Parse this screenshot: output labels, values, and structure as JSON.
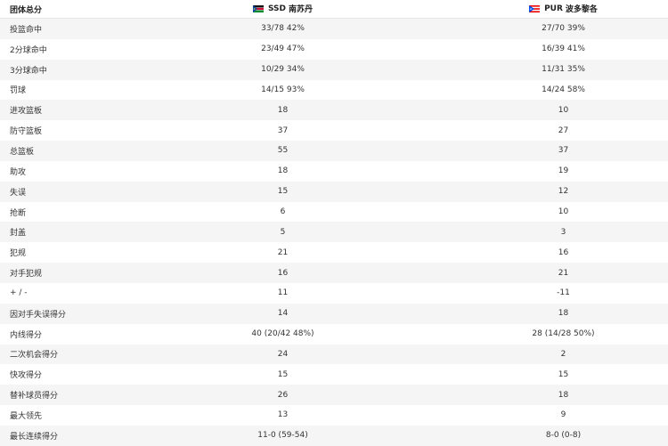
{
  "header": {
    "title": "团体总分",
    "team1": {
      "code": "SSD",
      "name": "南苏丹"
    },
    "team2": {
      "code": "PUR",
      "name": "波多黎各"
    }
  },
  "rows": [
    {
      "label": "投篮命中",
      "team1": "33/78 42%",
      "team2": "27/70 39%"
    },
    {
      "label": "2分球命中",
      "team1": "23/49 47%",
      "team2": "16/39 41%"
    },
    {
      "label": "3分球命中",
      "team1": "10/29 34%",
      "team2": "11/31 35%"
    },
    {
      "label": "罚球",
      "team1": "14/15 93%",
      "team2": "14/24 58%"
    },
    {
      "label": "进攻篮板",
      "team1": "18",
      "team2": "10"
    },
    {
      "label": "防守篮板",
      "team1": "37",
      "team2": "27"
    },
    {
      "label": "总篮板",
      "team1": "55",
      "team2": "37"
    },
    {
      "label": "助攻",
      "team1": "18",
      "team2": "19"
    },
    {
      "label": "失误",
      "team1": "15",
      "team2": "12"
    },
    {
      "label": "抢断",
      "team1": "6",
      "team2": "10"
    },
    {
      "label": "封盖",
      "team1": "5",
      "team2": "3"
    },
    {
      "label": "犯规",
      "team1": "21",
      "team2": "16"
    },
    {
      "label": "对手犯规",
      "team1": "16",
      "team2": "21"
    },
    {
      "label": "+ / -",
      "team1": "11",
      "team2": "-11"
    },
    {
      "label": "因对手失误得分",
      "team1": "14",
      "team2": "18"
    },
    {
      "label": "内线得分",
      "team1": "40 (20/42 48%)",
      "team2": "28 (14/28 50%)"
    },
    {
      "label": "二次机会得分",
      "team1": "24",
      "team2": "2"
    },
    {
      "label": "快攻得分",
      "team1": "15",
      "team2": "15"
    },
    {
      "label": "替补球员得分",
      "team1": "26",
      "team2": "18"
    },
    {
      "label": "最大领先",
      "team1": "13",
      "team2": "9"
    },
    {
      "label": "最长连续得分",
      "team1": "11-0 (59-54)",
      "team2": "8-0 (0-8)"
    }
  ]
}
